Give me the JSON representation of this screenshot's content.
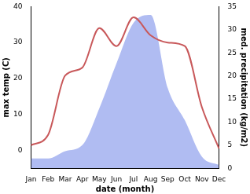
{
  "chart_data": {
    "type": "line",
    "x_label": "date (month)",
    "y_label": "max temp (C)",
    "y2_label": "med. precipitation (kg/m2)",
    "categories": [
      "Jan",
      "Feb",
      "Mar",
      "Apr",
      "May",
      "Jun",
      "Jul",
      "Aug",
      "Sep",
      "Oct",
      "Nov",
      "Dec"
    ],
    "ylim": [
      -5,
      40
    ],
    "yticks": [
      0,
      10,
      20,
      30,
      40
    ],
    "y2lim": [
      0,
      35
    ],
    "y2ticks": [
      0,
      5,
      10,
      15,
      20,
      25,
      30,
      35
    ],
    "grid": false,
    "series": [
      {
        "name": "max temp",
        "type": "line",
        "color": "#c8585a",
        "values": [
          1.4,
          4.3,
          20.8,
          23,
          34,
          29,
          37,
          32,
          30,
          29,
          12,
          0.5
        ]
      },
      {
        "name": "med. precipitation",
        "type": "area",
        "color": "#b0bcf2",
        "axis": "y2",
        "values": [
          2.1,
          2.1,
          3.7,
          5,
          13,
          22.7,
          31.5,
          33.2,
          17.4,
          10.4,
          2.5,
          0.7
        ]
      }
    ]
  }
}
